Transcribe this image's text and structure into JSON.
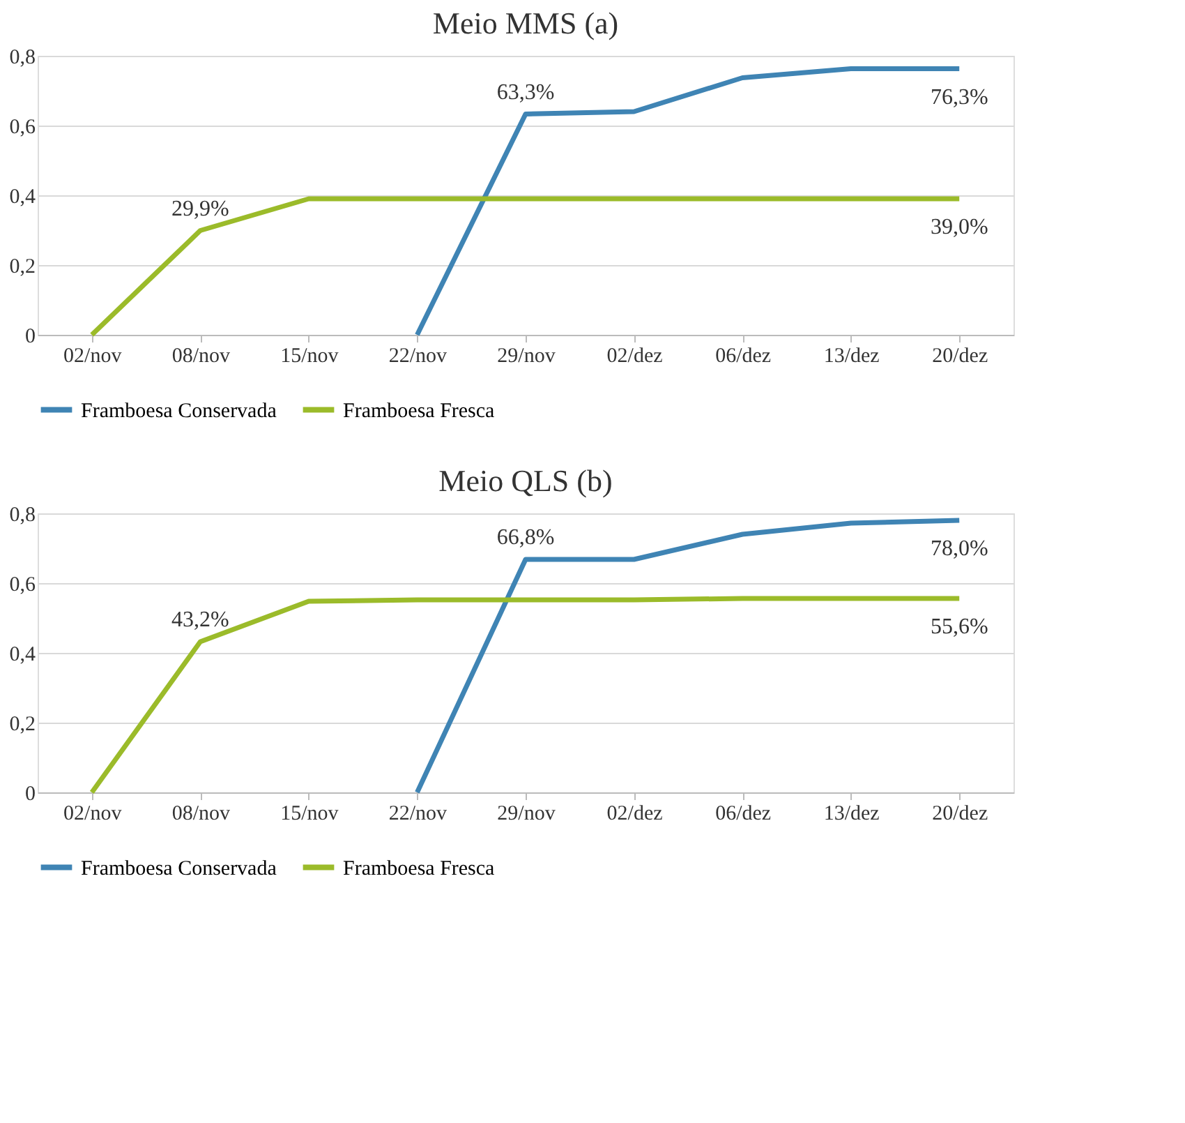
{
  "chart_data": [
    {
      "type": "line",
      "title": "Meio MMS (a)",
      "categories": [
        "02/nov",
        "08/nov",
        "15/nov",
        "22/nov",
        "29/nov",
        "02/dez",
        "06/dez",
        "13/dez",
        "20/dez"
      ],
      "ylim": [
        0,
        0.8
      ],
      "yticks": [
        0,
        {
          "value": 0.2,
          "label": "0,2"
        },
        {
          "value": 0.4,
          "label": "0,4"
        },
        {
          "value": 0.6,
          "label": "0,6"
        },
        {
          "value": 0.8,
          "label": "0,8"
        }
      ],
      "grid": "y",
      "legend": "bottom",
      "marker": "none",
      "line_style": "solid",
      "series": [
        {
          "name": "Framboesa Conservada",
          "color": "#3f84b4",
          "values": [
            null,
            null,
            null,
            0,
            0.633,
            0.64,
            0.737,
            0.763,
            0.763
          ],
          "value_labels": [
            null,
            null,
            null,
            null,
            "63,3%",
            null,
            null,
            null,
            "76,3%"
          ]
        },
        {
          "name": "Framboesa Fresca",
          "color": "#9bbb2a",
          "values": [
            0,
            0.299,
            0.39,
            0.39,
            0.39,
            0.39,
            0.39,
            0.39,
            0.39
          ],
          "value_labels": [
            null,
            "29,9%",
            null,
            null,
            null,
            null,
            null,
            null,
            "39,0%"
          ]
        }
      ]
    },
    {
      "type": "line",
      "title": "Meio QLS (b)",
      "categories": [
        "02/nov",
        "08/nov",
        "15/nov",
        "22/nov",
        "29/nov",
        "02/dez",
        "06/dez",
        "13/dez",
        "20/dez"
      ],
      "ylim": [
        0,
        0.8
      ],
      "yticks": [
        0,
        {
          "value": 0.2,
          "label": "0,2"
        },
        {
          "value": 0.4,
          "label": "0,4"
        },
        {
          "value": 0.6,
          "label": "0,6"
        },
        {
          "value": 0.8,
          "label": "0,8"
        }
      ],
      "grid": "y",
      "legend": "bottom",
      "marker": "none",
      "line_style": "solid",
      "series": [
        {
          "name": "Framboesa Conservada",
          "color": "#3f84b4",
          "values": [
            null,
            null,
            null,
            0,
            0.668,
            0.668,
            0.74,
            0.772,
            0.78
          ],
          "value_labels": [
            null,
            null,
            null,
            null,
            "66,8%",
            null,
            null,
            null,
            "78,0%"
          ]
        },
        {
          "name": "Framboesa Fresca",
          "color": "#9bbb2a",
          "values": [
            0,
            0.432,
            0.548,
            0.552,
            0.552,
            0.552,
            0.556,
            0.556,
            0.556
          ],
          "value_labels": [
            null,
            "43,2%",
            null,
            null,
            null,
            null,
            null,
            null,
            "55,6%"
          ]
        }
      ]
    }
  ]
}
